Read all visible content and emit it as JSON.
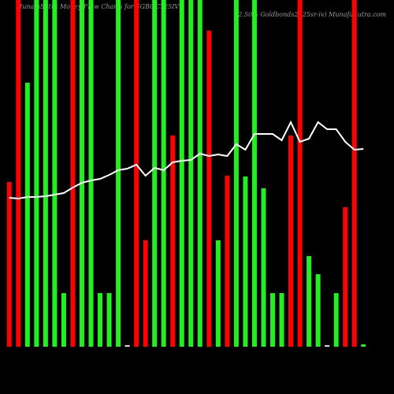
{
  "chart_data": {
    "type": "bar-line",
    "title": "MunafaSutra Money Flow Charts for SGBOCT25IV",
    "subtitle": "(2.50% Goldbonds2025sr-iv) MunafaSutra.com",
    "ylim": [
      0,
      440
    ],
    "bars": {
      "values": [
        209,
        440,
        335,
        440,
        440,
        440,
        68,
        440,
        440,
        440,
        68,
        68,
        440,
        2,
        440,
        135,
        440,
        440,
        268,
        440,
        440,
        440,
        401,
        135,
        217,
        440,
        216,
        440,
        201,
        68,
        68,
        268,
        440,
        115,
        92,
        2,
        68,
        177,
        440,
        3
      ],
      "colors": [
        "#ff0000",
        "#ff0000",
        "#22ee22",
        "#22ee22",
        "#22ee22",
        "#22ee22",
        "#22ee22",
        "#ff0000",
        "#22ee22",
        "#22ee22",
        "#22ee22",
        "#22ee22",
        "#22ee22",
        "#dddddd",
        "#ff0000",
        "#ff0000",
        "#22ee22",
        "#22ee22",
        "#ff0000",
        "#22ee22",
        "#22ee22",
        "#22ee22",
        "#ff0000",
        "#22ee22",
        "#ff0000",
        "#22ee22",
        "#22ee22",
        "#22ee22",
        "#22ee22",
        "#22ee22",
        "#22ee22",
        "#ff0000",
        "#ff0000",
        "#22ee22",
        "#22ee22",
        "#dddddd",
        "#22ee22",
        "#ff0000",
        "#ff0000",
        "#22ee22"
      ]
    },
    "line": {
      "color": "#ffffff",
      "values": [
        189,
        188,
        190,
        190,
        191,
        193,
        195,
        202,
        208,
        211,
        213,
        218,
        224,
        226,
        231,
        217,
        227,
        224,
        234,
        236,
        237,
        245,
        242,
        244,
        242,
        257,
        250,
        270,
        270,
        270,
        262,
        285,
        260,
        264,
        285,
        276,
        276,
        260,
        250,
        251
      ]
    }
  }
}
